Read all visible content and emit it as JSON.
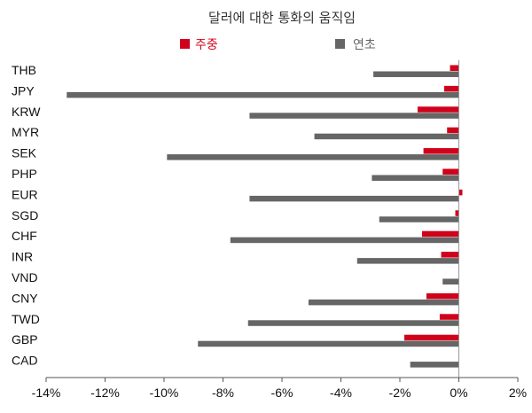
{
  "chart_data": {
    "type": "bar",
    "orientation": "horizontal",
    "title": "달러에 대한 통화의 움직임",
    "categories": [
      "THB",
      "JPY",
      "KRW",
      "MYR",
      "SEK",
      "PHP",
      "EUR",
      "SGD",
      "CHF",
      "INR",
      "VND",
      "CNY",
      "TWD",
      "GBP",
      "CAD"
    ],
    "series": [
      {
        "name": "주중",
        "color": "#d0021b",
        "values": [
          -0.3,
          -0.5,
          -1.4,
          -0.4,
          -1.2,
          -0.55,
          0.12,
          -0.12,
          -1.25,
          -0.6,
          0.0,
          -1.1,
          -0.65,
          -1.85,
          0.0
        ]
      },
      {
        "name": "연초",
        "color": "#666666",
        "values": [
          -2.9,
          -13.3,
          -7.1,
          -4.9,
          -9.9,
          -2.95,
          -7.1,
          -2.7,
          -7.75,
          -3.45,
          -0.55,
          -5.1,
          -7.15,
          -8.85,
          -1.65
        ]
      }
    ],
    "xlim": [
      -14,
      2
    ],
    "xticks": [
      -14,
      -12,
      -10,
      -8,
      -6,
      -4,
      -2,
      0,
      2
    ],
    "xtick_labels": [
      "-14%",
      "-12%",
      "-10%",
      "-8%",
      "-6%",
      "-4%",
      "-2%",
      "0%",
      "2%"
    ],
    "grid": false,
    "legend_position": "top-center"
  }
}
